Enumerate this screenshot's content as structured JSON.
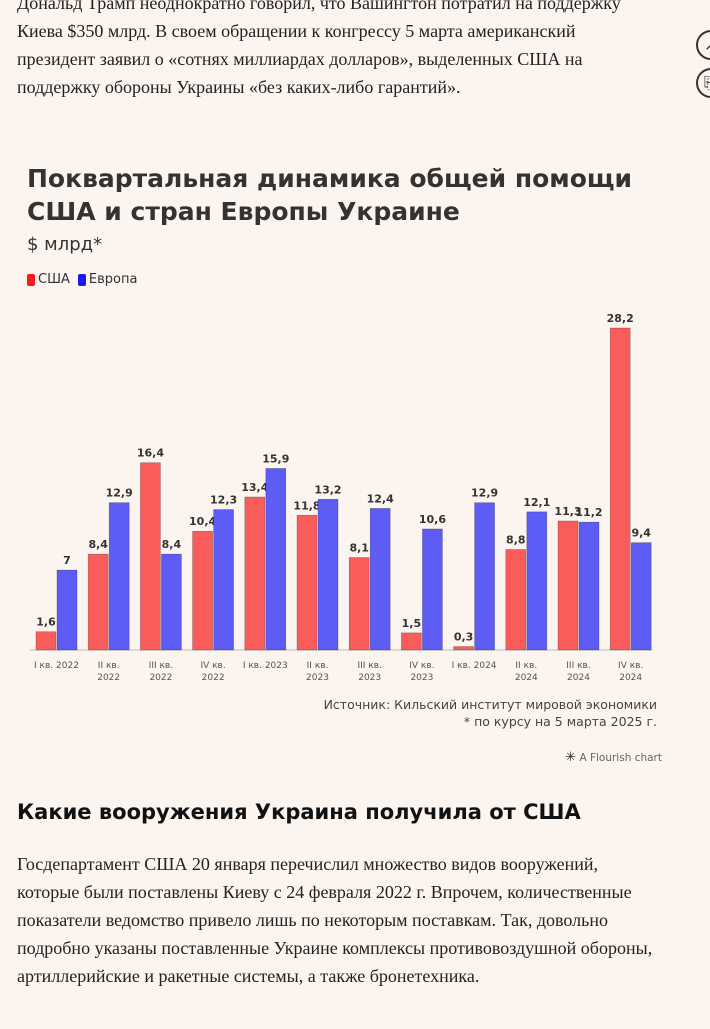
{
  "intro_paragraph": "Дональд Трамп неоднократно говорил, что Вашингтон потратил на поддержку Киева $350 млрд. В своем обращении к конгрессу 5 марта американский президент заявил о «сотнях миллиардах долларов», выделенных США на поддержку обороны Украины «без каких-либо гарантий».",
  "side_buttons": {
    "top_glyph": "↗",
    "bottom_glyph": "⎘"
  },
  "colors": {
    "usa": "#f95d5b",
    "europe": "#5d5cf4",
    "background": "#fcf4ef"
  },
  "chart_data": {
    "type": "bar",
    "title": "Поквартальная динамика общей помощи США и стран Европы Украине",
    "subtitle": "$ млрд*",
    "legend_position": "top-left",
    "grid": false,
    "ylim": [
      0,
      28.2
    ],
    "categories": [
      [
        "I кв. 2022"
      ],
      [
        "II кв.",
        "2022"
      ],
      [
        "III кв.",
        "2022"
      ],
      [
        "IV кв.",
        "2022"
      ],
      [
        "I кв. 2023"
      ],
      [
        "II кв.",
        "2023"
      ],
      [
        "III кв.",
        "2023"
      ],
      [
        "IV кв.",
        "2023"
      ],
      [
        "I кв. 2024"
      ],
      [
        "II кв.",
        "2024"
      ],
      [
        "III кв.",
        "2024"
      ],
      [
        "IV кв.",
        "2024"
      ]
    ],
    "series": [
      {
        "name": "США",
        "color": "#f95d5b",
        "values": [
          1.6,
          8.4,
          16.4,
          10.4,
          13.4,
          11.8,
          8.1,
          1.5,
          0.3,
          8.8,
          11.3,
          28.2
        ],
        "labels": [
          "1,6",
          "8,4",
          "16,4",
          "10,4",
          "13,4",
          "11,8",
          "8,1",
          "1,5",
          "0,3",
          "8,8",
          "11,3",
          "28,2"
        ]
      },
      {
        "name": "Европа",
        "color": "#5d5cf4",
        "values": [
          7,
          12.9,
          8.4,
          12.3,
          15.9,
          13.2,
          12.4,
          10.6,
          12.9,
          12.1,
          11.2,
          9.4
        ],
        "labels": [
          "7",
          "12,9",
          "8,4",
          "12,3",
          "15,9",
          "13,2",
          "12,4",
          "10,6",
          "12,9",
          "12,1",
          "11,2",
          "9,4"
        ]
      }
    ],
    "source": "Источник: Кильский институт мировой экономики",
    "footnote": "* по курсу на 5 марта 2025 г.",
    "credit": "A Flourish chart",
    "credit_icon": "flourish-star-icon"
  },
  "section_heading": "Какие вооружения Украина получила от США",
  "outro_paragraph": "Госдепартамент США 20 января перечислил множество видов вооружений, которые были поставлены Киеву с 24 февраля 2022 г. Впрочем, количественные показатели ведомство привело лишь по некоторым поставкам. Так, довольно подробно указаны поставленные Украине комплексы противовоздушной обороны, артиллерийские и ракетные системы, а также бронетехника."
}
